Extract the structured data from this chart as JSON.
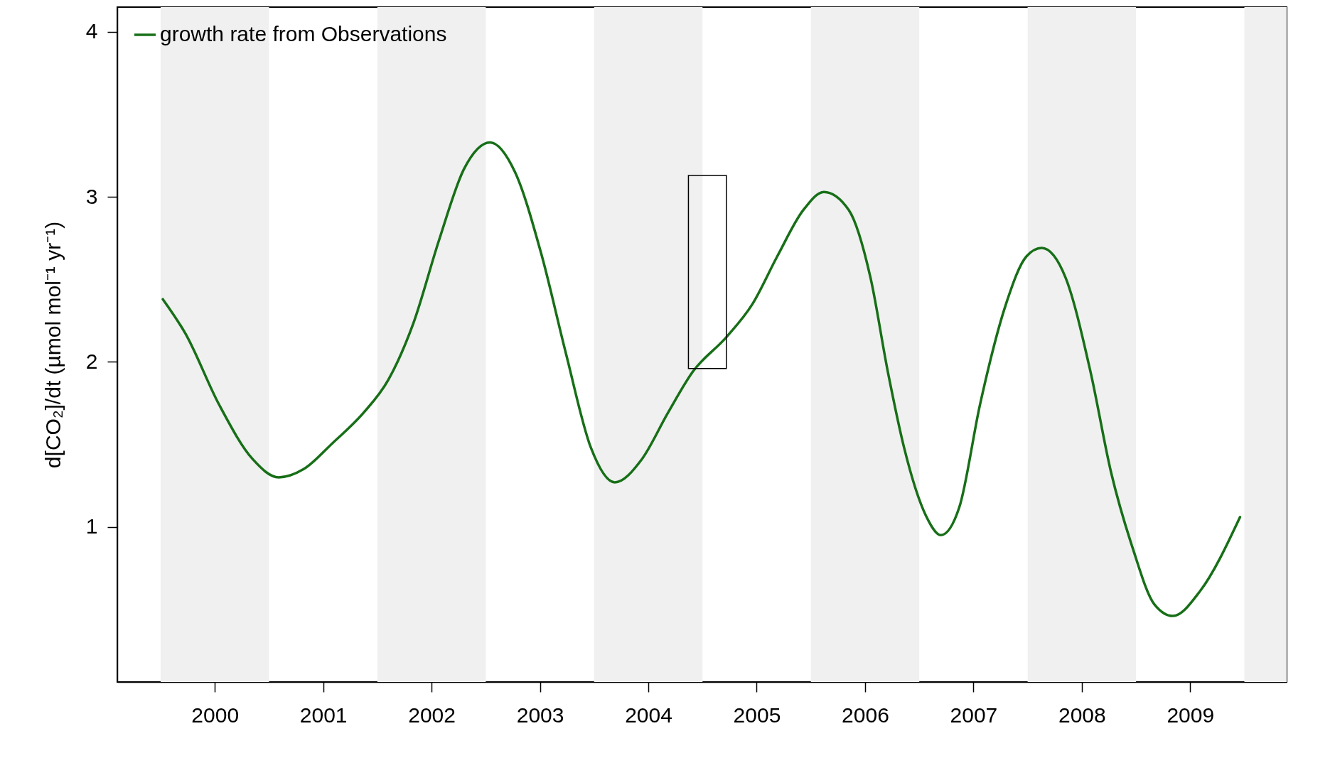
{
  "chart_data": {
    "type": "line",
    "ylabel": "d[CO₂]/dt (µmol mol⁻¹ yr⁻¹)",
    "x": [
      1999.52,
      1999.73,
      2000.04,
      2000.35,
      2000.59,
      2000.82,
      2001.09,
      2001.37,
      2001.6,
      2001.83,
      2002.07,
      2002.3,
      2002.54,
      2002.77,
      2003.01,
      2003.24,
      2003.47,
      2003.69,
      2003.94,
      2004.18,
      2004.41,
      2004.72,
      2004.96,
      2005.19,
      2005.43,
      2005.62,
      2005.85,
      2006.05,
      2006.21,
      2006.36,
      2006.56,
      2006.7,
      2006.87,
      2007.06,
      2007.3,
      2007.49,
      2007.63,
      2007.85,
      2008.08,
      2008.27,
      2008.47,
      2008.67,
      2008.84,
      2009.09,
      2009.46
    ],
    "series": [
      {
        "name": "growth rate from Observations",
        "color": "#176f17",
        "values": [
          2.38,
          2.17,
          1.74,
          1.41,
          1.3,
          1.35,
          1.51,
          1.69,
          1.89,
          2.23,
          2.74,
          3.17,
          3.33,
          3.15,
          2.66,
          2.05,
          1.48,
          1.27,
          1.41,
          1.69,
          1.94,
          2.15,
          2.35,
          2.64,
          2.92,
          3.03,
          2.92,
          2.51,
          1.94,
          1.48,
          1.07,
          0.95,
          1.12,
          1.74,
          2.35,
          2.64,
          2.69,
          2.51,
          1.94,
          1.33,
          0.87,
          0.53,
          0.46,
          0.61,
          1.06
        ]
      }
    ],
    "xlim": [
      1999.1,
      2009.89
    ],
    "xticks": [
      2000,
      2001,
      2002,
      2003,
      2004,
      2005,
      2006,
      2007,
      2008,
      2009
    ],
    "ylim": [
      0.06,
      4.15
    ],
    "yticks": [
      1,
      2,
      3,
      4
    ],
    "bands": [
      {
        "axis": "x",
        "from": 1999.5,
        "to": 2000.5,
        "color": "#f0f0f0"
      },
      {
        "axis": "x",
        "from": 2001.5,
        "to": 2002.5,
        "color": "#f0f0f0"
      },
      {
        "axis": "x",
        "from": 2003.5,
        "to": 2004.5,
        "color": "#f0f0f0"
      },
      {
        "axis": "x",
        "from": 2005.5,
        "to": 2006.5,
        "color": "#f0f0f0"
      },
      {
        "axis": "x",
        "from": 2007.5,
        "to": 2008.5,
        "color": "#f0f0f0"
      },
      {
        "axis": "x",
        "from": 2009.5,
        "to": 2009.89,
        "color": "#f0f0f0"
      }
    ],
    "legend": "top left",
    "marker": "none",
    "line_style": "solid"
  }
}
